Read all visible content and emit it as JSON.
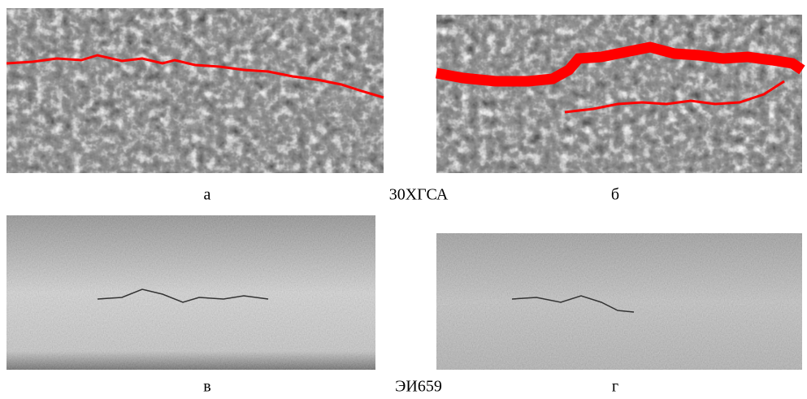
{
  "figure": {
    "rows": [
      {
        "left_label": "а",
        "material": "30ХГСА",
        "right_label": "б"
      },
      {
        "left_label": "в",
        "material": "ЭИ659",
        "right_label": "г"
      }
    ]
  }
}
